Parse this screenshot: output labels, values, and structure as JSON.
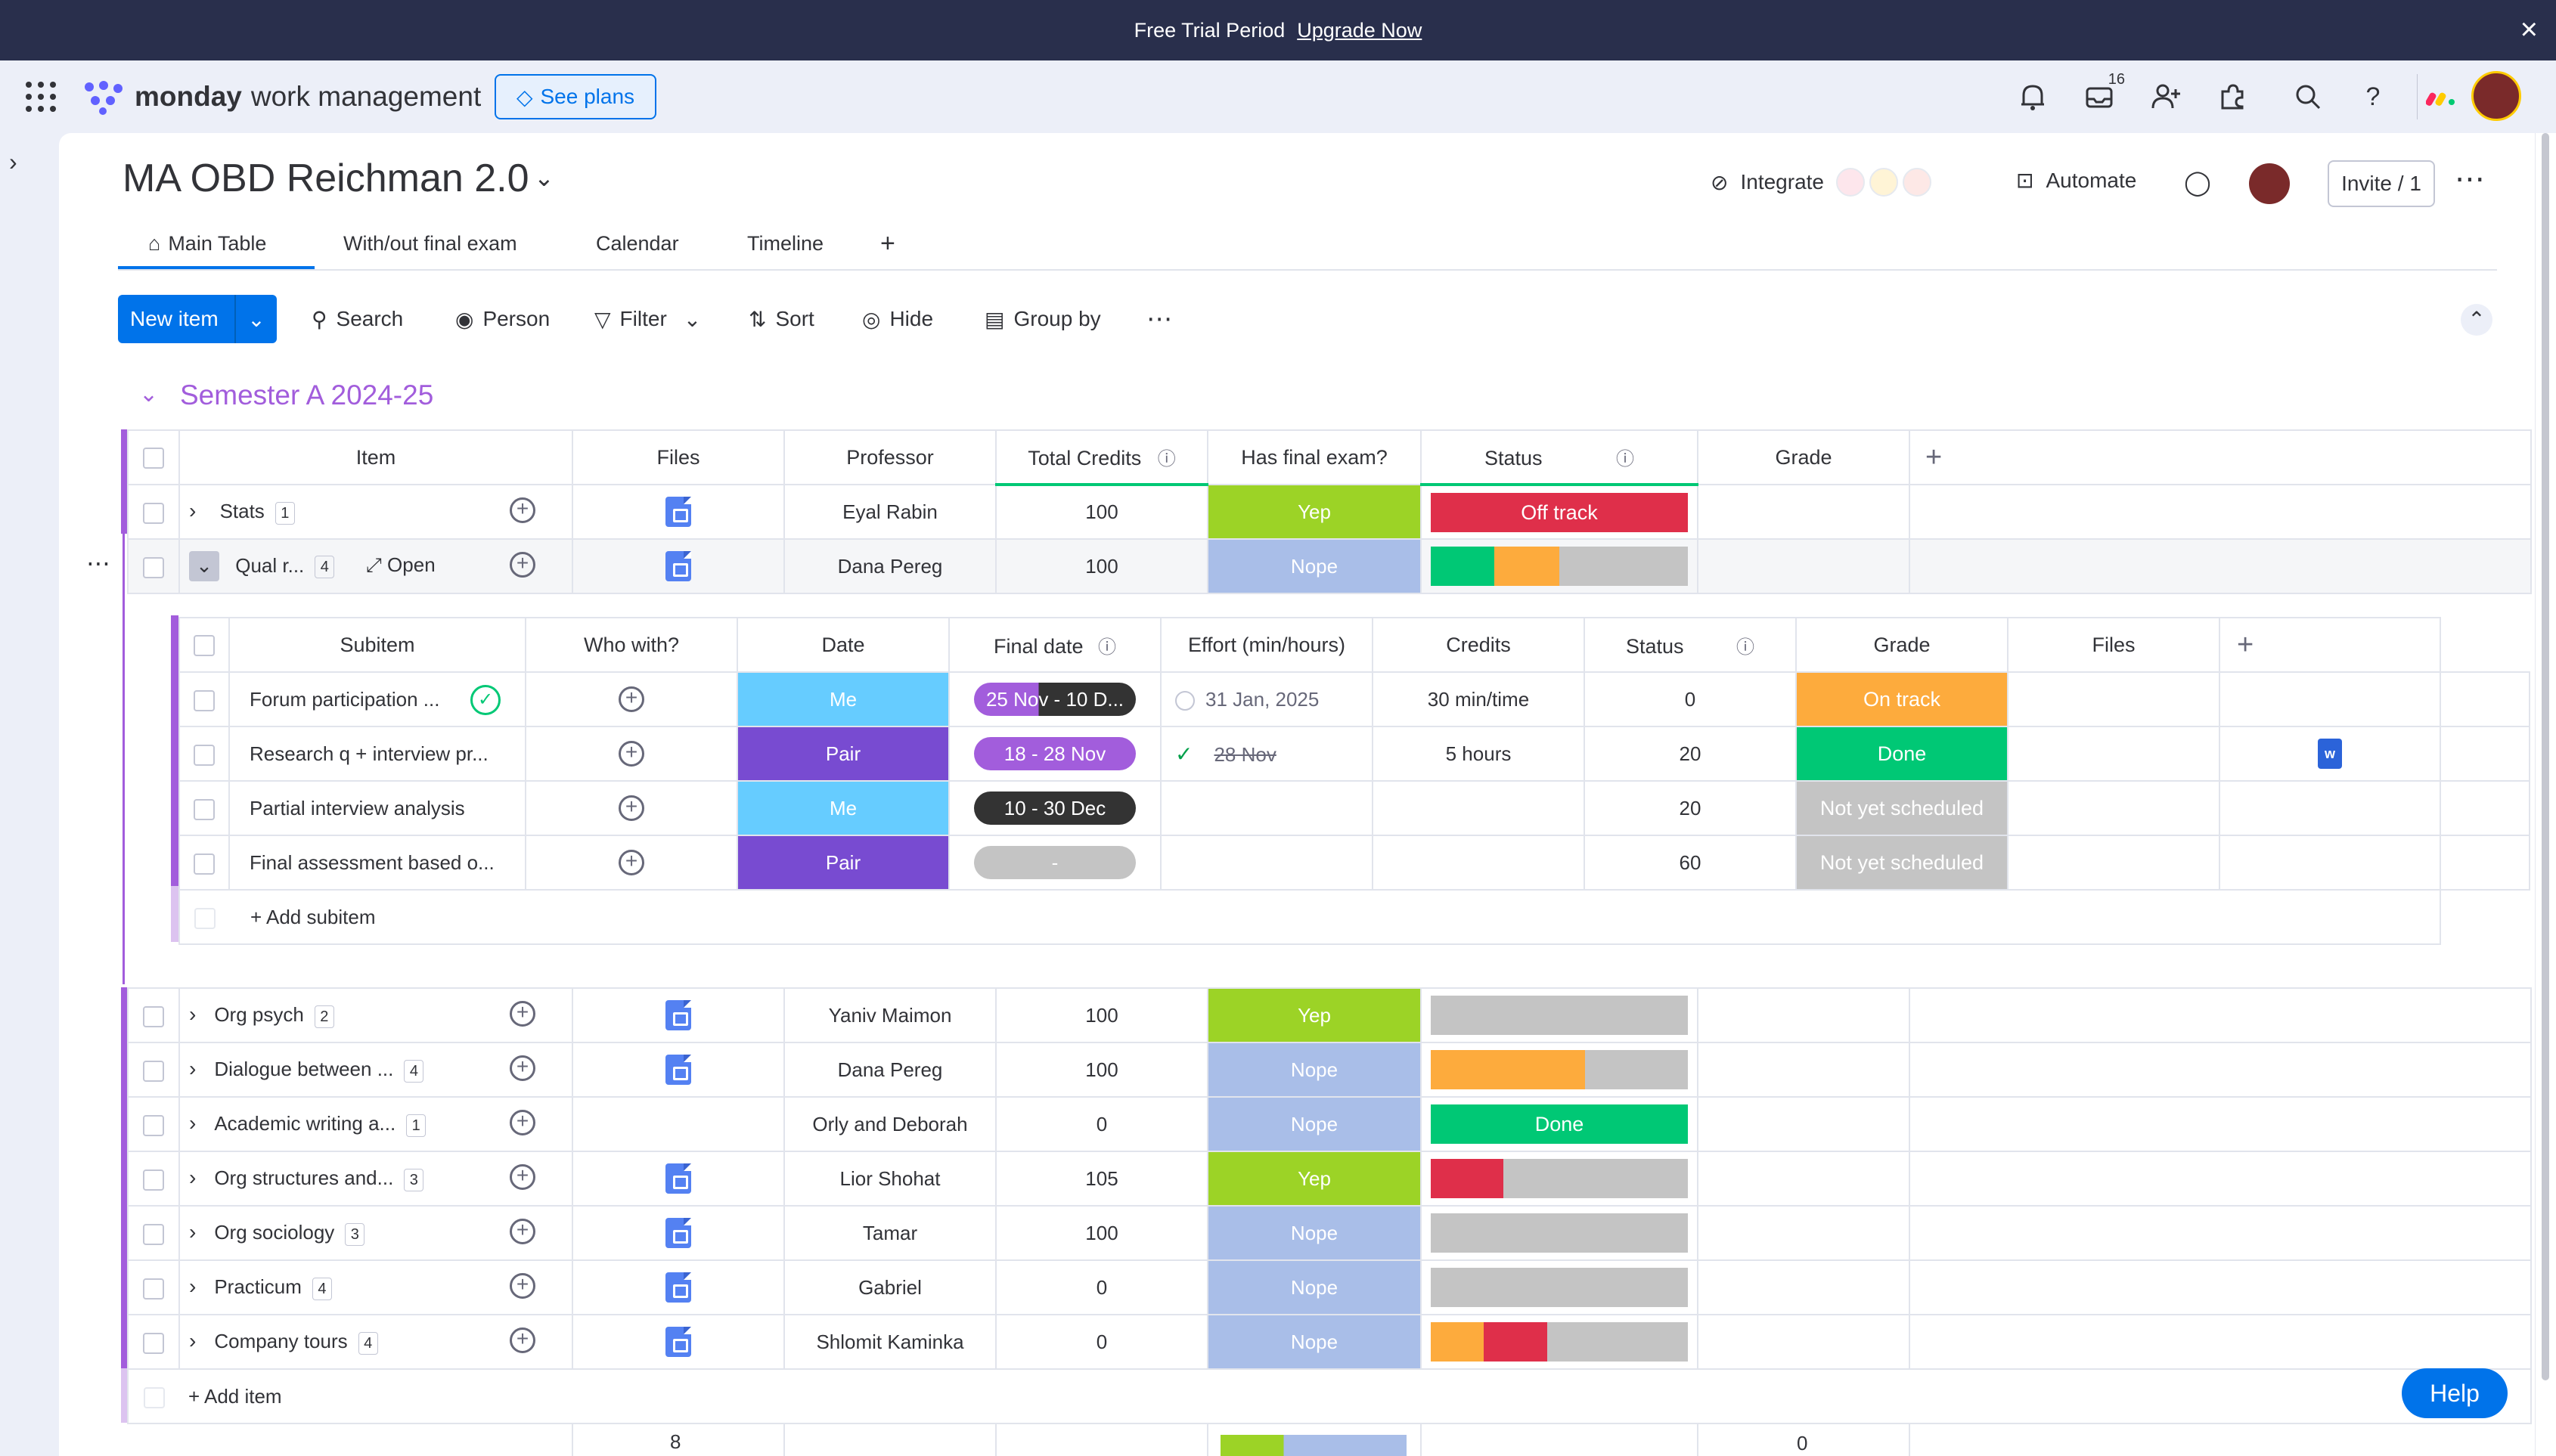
{
  "banner": {
    "text": "Free Trial Period",
    "link": "Upgrade Now"
  },
  "topbar": {
    "brand_bold": "monday",
    "brand_rest": "work management",
    "see_plans": "See plans",
    "inbox_count": "16"
  },
  "board": {
    "title": "MA OBD Reichman 2.0",
    "integrate": "Integrate",
    "automate": "Automate",
    "invite": "Invite / 1",
    "tabs": [
      "Main Table",
      "With/out final exam",
      "Calendar",
      "Timeline"
    ],
    "toolbar": {
      "new_item": "New item",
      "search": "Search",
      "person": "Person",
      "filter": "Filter",
      "sort": "Sort",
      "hide": "Hide",
      "group_by": "Group by"
    }
  },
  "group": {
    "title": "Semester A 2024-25",
    "columns": [
      "Item",
      "Files",
      "Professor",
      "Total Credits",
      "Has final exam?",
      "Status",
      "Grade"
    ],
    "rows": [
      {
        "name": "Stats",
        "count": "1",
        "professor": "Eyal Rabin",
        "credits": "100",
        "exam": "Yep",
        "status": "Off track"
      },
      {
        "name": "Qual r...",
        "count": "4",
        "open": "Open",
        "professor": "Dana Pereg",
        "credits": "100",
        "exam": "Nope",
        "status": ""
      }
    ],
    "rows2": [
      {
        "name": "Org psych",
        "count": "2",
        "professor": "Yaniv Maimon",
        "credits": "100",
        "exam": "Yep",
        "status": ""
      },
      {
        "name": "Dialogue between ...",
        "count": "4",
        "professor": "Dana Pereg",
        "credits": "100",
        "exam": "Nope",
        "status": ""
      },
      {
        "name": "Academic writing a...",
        "count": "1",
        "professor": "Orly and Deborah",
        "credits": "0",
        "exam": "Nope",
        "status": "Done"
      },
      {
        "name": "Org structures and...",
        "count": "3",
        "professor": "Lior Shohat",
        "credits": "105",
        "exam": "Yep",
        "status": ""
      },
      {
        "name": "Org sociology",
        "count": "3",
        "professor": "Tamar",
        "credits": "100",
        "exam": "Nope",
        "status": ""
      },
      {
        "name": "Practicum",
        "count": "4",
        "professor": "Gabriel",
        "credits": "0",
        "exam": "Nope",
        "status": ""
      },
      {
        "name": "Company tours",
        "count": "4",
        "professor": "Shlomit Kaminka",
        "credits": "0",
        "exam": "Nope",
        "status": ""
      }
    ],
    "add_item": "+ Add item",
    "footer": {
      "files": "8",
      "grade": "0"
    }
  },
  "subitems": {
    "columns": [
      "Subitem",
      "Who with?",
      "Date",
      "Final date",
      "Effort (min/hours)",
      "Credits",
      "Status",
      "Grade",
      "Files"
    ],
    "rows": [
      {
        "name": "Forum participation ...",
        "who": "Me",
        "date": "25 Nov - 10 D...",
        "final": "31 Jan, 2025",
        "effort": "30 min/time",
        "credits": "0",
        "status": "On track"
      },
      {
        "name": "Research q + interview pr...",
        "who": "Pair",
        "date": "18 - 28 Nov",
        "final": "28 Nov",
        "effort": "5 hours",
        "credits": "20",
        "status": "Done"
      },
      {
        "name": "Partial interview analysis",
        "who": "Me",
        "date": "10 - 30 Dec",
        "final": "",
        "effort": "",
        "credits": "20",
        "status": "Not yet scheduled"
      },
      {
        "name": "Final assessment based o...",
        "who": "Pair",
        "date": "-",
        "final": "",
        "effort": "",
        "credits": "60",
        "status": "Not yet scheduled"
      }
    ],
    "add_subitem": "+ Add subitem"
  },
  "help": "Help",
  "colors": {
    "green": "#9cd326",
    "blue_nope": "#a9bee8",
    "red": "#df2f4a",
    "orange": "#fdab3d",
    "done": "#00c875",
    "grey": "#c4c4c4",
    "purple": "#a25ddc",
    "me": "#66ccff",
    "pair": "#784bd1"
  }
}
